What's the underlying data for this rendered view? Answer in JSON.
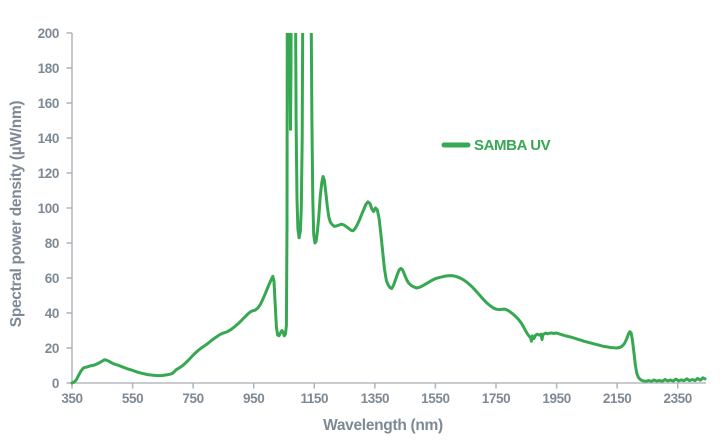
{
  "colors": {
    "series_green": "#36a852",
    "label_gray": "#7d8994",
    "axis_gray": "#b5babf"
  },
  "chart_data": {
    "type": "line",
    "title": "",
    "xlabel": "Wavelength (nm)",
    "ylabel": "Spectral power density (µW/nm)",
    "xlim": [
      350,
      2450
    ],
    "ylim": [
      0,
      200
    ],
    "x_ticks": [
      350,
      550,
      750,
      950,
      1150,
      1350,
      1550,
      1750,
      1950,
      2150,
      2350
    ],
    "y_ticks": [
      0,
      20,
      40,
      60,
      80,
      100,
      120,
      140,
      160,
      180,
      200
    ],
    "grid": false,
    "legend_position": "center-right",
    "clip_above_ymax": true,
    "series": [
      {
        "name": "SAMBA UV",
        "color": "#36a852",
        "points": [
          [
            350,
            0
          ],
          [
            358,
            0.6
          ],
          [
            365,
            2
          ],
          [
            372,
            4.5
          ],
          [
            380,
            7
          ],
          [
            388,
            8.6
          ],
          [
            395,
            9
          ],
          [
            403,
            9.3
          ],
          [
            410,
            9.8
          ],
          [
            418,
            10
          ],
          [
            426,
            10.4
          ],
          [
            434,
            11
          ],
          [
            442,
            11.8
          ],
          [
            450,
            12.5
          ],
          [
            458,
            13.3
          ],
          [
            465,
            13
          ],
          [
            472,
            12.4
          ],
          [
            480,
            11.6
          ],
          [
            490,
            10.8
          ],
          [
            500,
            10.3
          ],
          [
            515,
            9.3
          ],
          [
            530,
            8.3
          ],
          [
            548,
            7.3
          ],
          [
            565,
            6.3
          ],
          [
            582,
            5.5
          ],
          [
            600,
            4.8
          ],
          [
            618,
            4.4
          ],
          [
            632,
            4.2
          ],
          [
            648,
            4.3
          ],
          [
            662,
            4.6
          ],
          [
            672,
            5
          ],
          [
            680,
            5.3
          ],
          [
            688,
            6.5
          ],
          [
            694,
            7.6
          ],
          [
            702,
            8.4
          ],
          [
            712,
            9.5
          ],
          [
            722,
            11
          ],
          [
            733,
            12.8
          ],
          [
            744,
            14.8
          ],
          [
            755,
            16.8
          ],
          [
            766,
            18.5
          ],
          [
            777,
            20
          ],
          [
            788,
            21.3
          ],
          [
            800,
            22.8
          ],
          [
            812,
            24.5
          ],
          [
            824,
            26
          ],
          [
            835,
            27.3
          ],
          [
            845,
            28.2
          ],
          [
            855,
            28.8
          ],
          [
            866,
            29.6
          ],
          [
            877,
            30.8
          ],
          [
            888,
            32.3
          ],
          [
            899,
            34
          ],
          [
            910,
            35.8
          ],
          [
            921,
            37.8
          ],
          [
            931,
            39.5
          ],
          [
            940,
            40.8
          ],
          [
            948,
            41.3
          ],
          [
            956,
            41.7
          ],
          [
            964,
            43
          ],
          [
            972,
            45
          ],
          [
            980,
            47.8
          ],
          [
            988,
            51
          ],
          [
            996,
            54.3
          ],
          [
            1003,
            57.3
          ],
          [
            1009,
            59.5
          ],
          [
            1013,
            61
          ],
          [
            1017,
            58
          ],
          [
            1021,
            45
          ],
          [
            1025,
            32
          ],
          [
            1029,
            27.5
          ],
          [
            1033,
            27
          ],
          [
            1038,
            28.5
          ],
          [
            1043,
            30
          ],
          [
            1047,
            29
          ],
          [
            1051,
            27
          ],
          [
            1055,
            28
          ],
          [
            1058,
            33
          ],
          [
            1060,
            90
          ],
          [
            1061.5,
            300
          ],
          [
            1068,
            300
          ],
          [
            1070,
            170
          ],
          [
            1071.5,
            145
          ],
          [
            1073,
            180
          ],
          [
            1074.5,
            300
          ],
          [
            1086,
            300
          ],
          [
            1088,
            220
          ],
          [
            1090,
            150
          ],
          [
            1093,
            105
          ],
          [
            1096,
            88
          ],
          [
            1100,
            83
          ],
          [
            1104,
            87
          ],
          [
            1107,
            100
          ],
          [
            1110,
            140
          ],
          [
            1112,
            220
          ],
          [
            1114,
            300
          ],
          [
            1137,
            300
          ],
          [
            1140,
            200
          ],
          [
            1142,
            150
          ],
          [
            1145,
            105
          ],
          [
            1148,
            85
          ],
          [
            1152,
            80
          ],
          [
            1156,
            81
          ],
          [
            1160,
            86
          ],
          [
            1165,
            95
          ],
          [
            1170,
            107
          ],
          [
            1175,
            115
          ],
          [
            1179,
            118
          ],
          [
            1183,
            116
          ],
          [
            1188,
            109
          ],
          [
            1193,
            101
          ],
          [
            1198,
            95
          ],
          [
            1203,
            92
          ],
          [
            1209,
            90.5
          ],
          [
            1216,
            89.5
          ],
          [
            1224,
            89.8
          ],
          [
            1232,
            90.3
          ],
          [
            1240,
            90.8
          ],
          [
            1248,
            90.3
          ],
          [
            1256,
            89.3
          ],
          [
            1264,
            88.3
          ],
          [
            1271,
            87.3
          ],
          [
            1278,
            87
          ],
          [
            1285,
            88.3
          ],
          [
            1292,
            90.5
          ],
          [
            1300,
            93.5
          ],
          [
            1307,
            96.5
          ],
          [
            1314,
            99.5
          ],
          [
            1320,
            102
          ],
          [
            1327,
            103.5
          ],
          [
            1334,
            102.5
          ],
          [
            1340,
            99.5
          ],
          [
            1346,
            98
          ],
          [
            1352,
            100
          ],
          [
            1358,
            99
          ],
          [
            1364,
            94
          ],
          [
            1370,
            85
          ],
          [
            1376,
            75
          ],
          [
            1382,
            65
          ],
          [
            1388,
            58.5
          ],
          [
            1394,
            56
          ],
          [
            1400,
            54.5
          ],
          [
            1406,
            54
          ],
          [
            1412,
            56
          ],
          [
            1418,
            59
          ],
          [
            1424,
            62
          ],
          [
            1430,
            64.5
          ],
          [
            1436,
            65.5
          ],
          [
            1442,
            64.5
          ],
          [
            1448,
            62
          ],
          [
            1455,
            59
          ],
          [
            1462,
            57
          ],
          [
            1470,
            55.8
          ],
          [
            1478,
            55
          ],
          [
            1487,
            54.3
          ],
          [
            1496,
            54.6
          ],
          [
            1506,
            55.4
          ],
          [
            1516,
            56.4
          ],
          [
            1528,
            57.6
          ],
          [
            1540,
            58.8
          ],
          [
            1552,
            59.8
          ],
          [
            1565,
            60.4
          ],
          [
            1578,
            60.9
          ],
          [
            1591,
            61.3
          ],
          [
            1604,
            61.4
          ],
          [
            1617,
            61
          ],
          [
            1630,
            60.1
          ],
          [
            1643,
            58.9
          ],
          [
            1656,
            57.3
          ],
          [
            1669,
            55.3
          ],
          [
            1682,
            52.9
          ],
          [
            1695,
            50.4
          ],
          [
            1707,
            48
          ],
          [
            1719,
            45.9
          ],
          [
            1731,
            44.1
          ],
          [
            1742,
            42.8
          ],
          [
            1752,
            42.1
          ],
          [
            1761,
            41.9
          ],
          [
            1770,
            42.1
          ],
          [
            1779,
            42.2
          ],
          [
            1788,
            41.6
          ],
          [
            1797,
            40.6
          ],
          [
            1806,
            39.4
          ],
          [
            1815,
            38
          ],
          [
            1824,
            36.4
          ],
          [
            1833,
            34.4
          ],
          [
            1841,
            32
          ],
          [
            1848,
            29.8
          ],
          [
            1854,
            28
          ],
          [
            1860,
            26.6
          ],
          [
            1865,
            25.6
          ],
          [
            1867,
            23.9
          ],
          [
            1870,
            26.9
          ],
          [
            1875,
            25.4
          ],
          [
            1880,
            27.2
          ],
          [
            1886,
            27.9
          ],
          [
            1892,
            27.4
          ],
          [
            1899,
            27.9
          ],
          [
            1902,
            24.8
          ],
          [
            1905,
            27.6
          ],
          [
            1913,
            28.5
          ],
          [
            1920,
            28.1
          ],
          [
            1927,
            28.4
          ],
          [
            1934,
            28.6
          ],
          [
            1941,
            28.3
          ],
          [
            1948,
            28.6
          ],
          [
            1955,
            28.3
          ],
          [
            1962,
            27.9
          ],
          [
            1970,
            27.5
          ],
          [
            1979,
            27
          ],
          [
            1988,
            26.6
          ],
          [
            1997,
            26.2
          ],
          [
            2007,
            25.7
          ],
          [
            2018,
            25.1
          ],
          [
            2029,
            24.5
          ],
          [
            2040,
            23.9
          ],
          [
            2051,
            23.4
          ],
          [
            2062,
            22.9
          ],
          [
            2073,
            22.4
          ],
          [
            2084,
            21.9
          ],
          [
            2095,
            21.4
          ],
          [
            2106,
            20.9
          ],
          [
            2117,
            20.6
          ],
          [
            2128,
            20.3
          ],
          [
            2139,
            20.1
          ],
          [
            2149,
            20
          ],
          [
            2158,
            20.3
          ],
          [
            2166,
            21
          ],
          [
            2174,
            22.5
          ],
          [
            2181,
            25
          ],
          [
            2187,
            27.8
          ],
          [
            2192,
            29.3
          ],
          [
            2196,
            28.6
          ],
          [
            2200,
            25
          ],
          [
            2205,
            18
          ],
          [
            2210,
            10.5
          ],
          [
            2215,
            5.5
          ],
          [
            2221,
            3
          ],
          [
            2228,
            1.8
          ],
          [
            2236,
            1.2
          ],
          [
            2245,
            1
          ],
          [
            2254,
            1.4
          ],
          [
            2263,
            1
          ],
          [
            2272,
            1.7
          ],
          [
            2281,
            1.1
          ],
          [
            2290,
            1.5
          ],
          [
            2299,
            1
          ],
          [
            2308,
            2
          ],
          [
            2317,
            1.2
          ],
          [
            2326,
            1.7
          ],
          [
            2335,
            1.1
          ],
          [
            2344,
            2.2
          ],
          [
            2353,
            1.2
          ],
          [
            2362,
            1.8
          ],
          [
            2371,
            1.3
          ],
          [
            2380,
            2.4
          ],
          [
            2389,
            1.4
          ],
          [
            2398,
            2
          ],
          [
            2407,
            1.4
          ],
          [
            2416,
            2.6
          ],
          [
            2425,
            1.6
          ],
          [
            2433,
            3
          ],
          [
            2440,
            2.4
          ]
        ]
      }
    ]
  }
}
